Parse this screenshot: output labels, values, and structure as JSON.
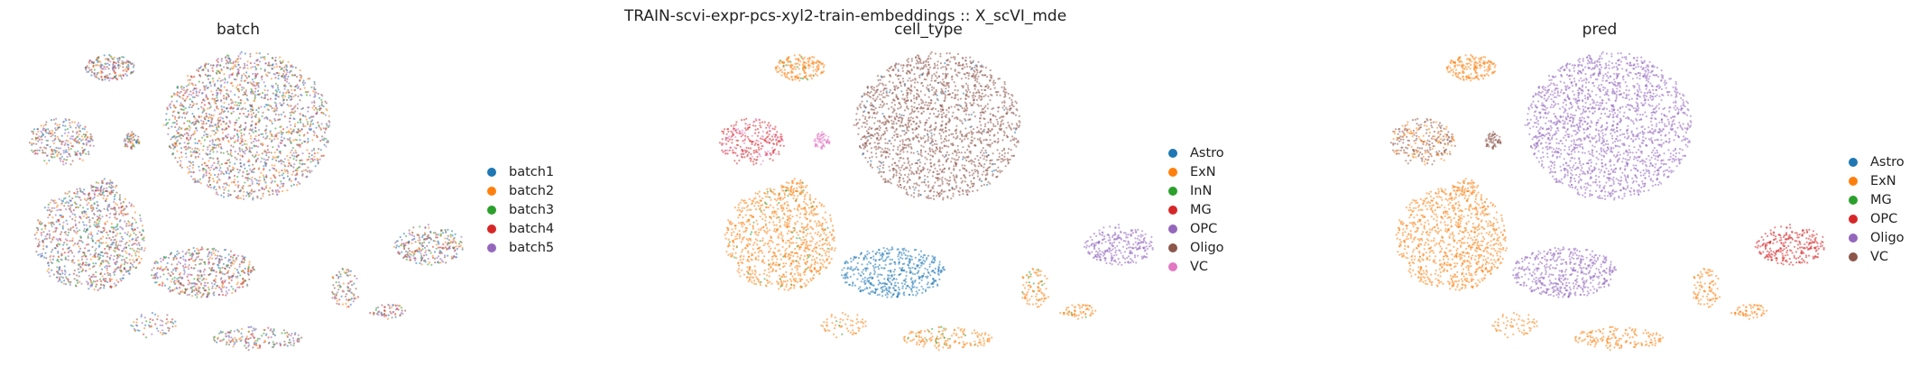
{
  "suptitle": "TRAIN-scvi-expr-pcs-xyl2-train-embeddings :: X_scVI_mde",
  "colors": {
    "c0": "#1f77b4",
    "c1": "#ff7f0e",
    "c2": "#2ca02c",
    "c3": "#d62728",
    "c4": "#9467bd",
    "c5": "#8c564b",
    "c6": "#e377c2"
  },
  "chart_data": [
    {
      "type": "scatter",
      "title": "batch",
      "legend_placement": "right",
      "legend": [
        {
          "label": "batch1",
          "color": "#1f77b4"
        },
        {
          "label": "batch2",
          "color": "#ff7f0e"
        },
        {
          "label": "batch3",
          "color": "#2ca02c"
        },
        {
          "label": "batch4",
          "color": "#d62728"
        },
        {
          "label": "batch5",
          "color": "#9467bd"
        }
      ]
    },
    {
      "type": "scatter",
      "title": "cell_type",
      "legend_placement": "right",
      "legend": [
        {
          "label": "Astro",
          "color": "#1f77b4"
        },
        {
          "label": "ExN",
          "color": "#ff7f0e"
        },
        {
          "label": "InN",
          "color": "#2ca02c"
        },
        {
          "label": "MG",
          "color": "#d62728"
        },
        {
          "label": "OPC",
          "color": "#9467bd"
        },
        {
          "label": "Oligo",
          "color": "#8c564b"
        },
        {
          "label": "VC",
          "color": "#e377c2"
        }
      ]
    },
    {
      "type": "scatter",
      "title": "pred",
      "legend_placement": "right",
      "legend": [
        {
          "label": "Astro",
          "color": "#1f77b4"
        },
        {
          "label": "ExN",
          "color": "#ff7f0e"
        },
        {
          "label": "MG",
          "color": "#2ca02c"
        },
        {
          "label": "OPC",
          "color": "#d62728"
        },
        {
          "label": "Oligo",
          "color": "#9467bd"
        },
        {
          "label": "VC",
          "color": "#8c564b"
        }
      ]
    }
  ]
}
